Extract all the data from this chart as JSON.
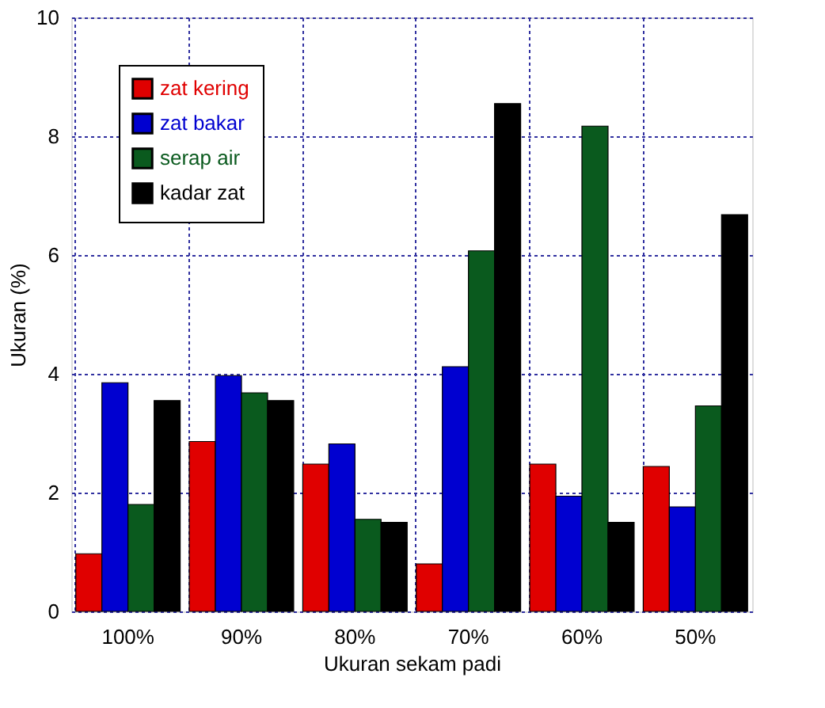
{
  "chart_data": {
    "type": "bar",
    "xlabel": "Ukuran sekam padi",
    "ylabel": "Ukuran (%)",
    "categories": [
      "100%",
      "90%",
      "80%",
      "70%",
      "60%",
      "50%"
    ],
    "series": [
      {
        "name": "zat kering",
        "color": "#e00000",
        "values": [
          0.97,
          2.86,
          2.48,
          0.8,
          2.48,
          2.44
        ]
      },
      {
        "name": "zat bakar",
        "color": "#0000d0",
        "values": [
          3.85,
          3.97,
          2.82,
          4.12,
          1.94,
          1.76
        ]
      },
      {
        "name": "serap air",
        "color": "#0a5a1e",
        "values": [
          1.8,
          3.68,
          1.55,
          6.07,
          8.17,
          3.46
        ]
      },
      {
        "name": "kadar zat",
        "color": "#000000",
        "values": [
          3.55,
          3.55,
          1.5,
          8.55,
          1.5,
          6.68
        ]
      }
    ],
    "ylim": [
      0,
      10
    ],
    "yticks": [
      0,
      2,
      4,
      6,
      8,
      10
    ],
    "grid": true,
    "legend": "top left"
  }
}
